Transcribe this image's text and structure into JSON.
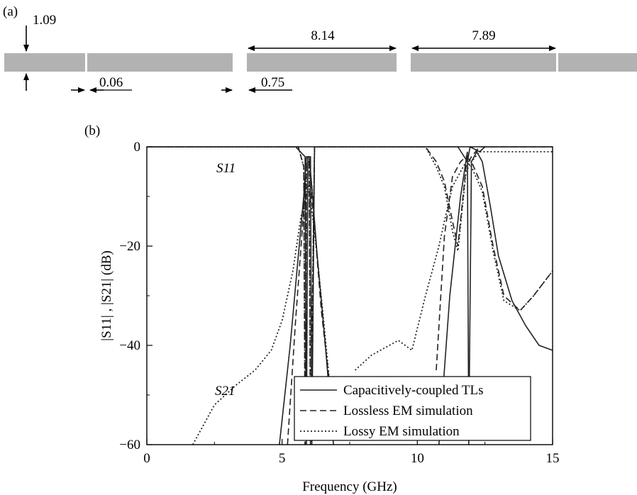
{
  "panel_labels": {
    "a": "(a)",
    "b": "(b)"
  },
  "layout_diagram": {
    "dimensions": [
      "1.09",
      "0.06",
      "8.14",
      "0.75",
      "7.89"
    ]
  },
  "chart_data": {
    "type": "line",
    "title": "",
    "xlabel": "Frequency (GHz)",
    "ylabel": "|S11| , |S21| (dB)",
    "xlim": [
      0,
      15
    ],
    "ylim": [
      -60,
      0
    ],
    "xticks": [
      "0",
      "5",
      "10",
      "15"
    ],
    "yticks": [
      "0",
      "−20",
      "−40",
      "−60"
    ],
    "grid": false,
    "legend_position": "bottom-right",
    "annotations": [
      "S11",
      "S21"
    ],
    "series": [
      {
        "name": "Capacitively-coupled TLs",
        "style": "solid",
        "curves": [
          {
            "label": "S21",
            "x": [
              4.9,
              5.3,
              5.6,
              5.8,
              5.9,
              6.0,
              6.1,
              6.3,
              6.6,
              6.9
            ],
            "y": [
              -60,
              -40,
              -22,
              -10,
              -2,
              -2,
              -8,
              -22,
              -40,
              -60
            ]
          },
          {
            "label": "S21",
            "x": [
              10.8,
              11.2,
              11.6,
              11.85,
              11.9,
              12.0,
              12.2,
              12.4,
              12.7,
              13.0,
              13.5,
              14.0,
              14.5,
              15.0
            ],
            "y": [
              -60,
              -30,
              -10,
              -1,
              -60,
              -3,
              -1,
              -3,
              -12,
              -22,
              -31,
              -36,
              -40,
              -41
            ]
          },
          {
            "label": "S11",
            "x": [
              0,
              5.5,
              5.85,
              5.9,
              5.95,
              6.05,
              6.1,
              6.2,
              11.5,
              11.85,
              11.95,
              12.3,
              12.5,
              15.0
            ],
            "y": [
              0,
              0,
              -2,
              -60,
              -2,
              -2,
              -60,
              0,
              0,
              -3,
              0,
              -1,
              0,
              0
            ]
          }
        ]
      },
      {
        "name": "Lossless EM simulation",
        "style": "dashed",
        "curves": [
          {
            "label": "S21",
            "x": [
              5.2,
              5.5,
              5.7,
              5.85,
              5.95,
              6.05,
              6.2,
              6.45,
              6.8
            ],
            "y": [
              -60,
              -35,
              -20,
              -9,
              -8,
              -8,
              -16,
              -33,
              -50
            ]
          },
          {
            "label": "S21",
            "x": [
              10.7,
              11.0,
              11.3,
              11.6,
              11.8,
              12.0,
              12.4,
              12.8,
              13.2,
              13.8,
              14.3,
              15.0
            ],
            "y": [
              -45,
              -18,
              -6,
              -3,
              -2,
              -3,
              -8,
              -20,
              -30,
              -33,
              -30,
              -25
            ]
          },
          {
            "label": "S11",
            "x": [
              0,
              5.6,
              5.8,
              5.85,
              5.9,
              6.0,
              6.05,
              6.2,
              10.3,
              10.7,
              11.0,
              11.3,
              11.5,
              11.8,
              12.0,
              12.3,
              15.0
            ],
            "y": [
              0,
              0,
              -4,
              -60,
              -3,
              -3,
              -60,
              0,
              0,
              -3,
              -7,
              -15,
              -20,
              -4,
              -2,
              0,
              0
            ]
          }
        ]
      },
      {
        "name": "Lossy EM simulation",
        "style": "dotted",
        "curves": [
          {
            "label": "S21",
            "x": [
              1.7,
              2.5,
              3.3,
              4.0,
              4.6,
              5.0,
              5.4,
              5.7,
              5.9,
              6.0,
              6.2,
              6.5,
              6.8
            ],
            "y": [
              -60,
              -52,
              -48,
              -45,
              -41,
              -35,
              -25,
              -14,
              -10,
              -9,
              -17,
              -33,
              -50
            ]
          },
          {
            "label": "S21",
            "x": [
              7.7,
              8.3,
              9.3,
              9.8,
              10.3,
              10.8,
              11.0,
              11.3,
              11.6,
              11.8,
              12.0,
              12.4,
              12.8,
              13.2,
              13.8,
              14.3,
              15.0
            ],
            "y": [
              -45,
              -42,
              -39,
              -41,
              -30,
              -20,
              -15,
              -8,
              -5,
              -3,
              -4,
              -9,
              -21,
              -31,
              -33,
              -30,
              -25
            ]
          },
          {
            "label": "S11",
            "x": [
              0,
              5.6,
              5.8,
              5.85,
              5.9,
              6.0,
              6.05,
              6.2,
              10.3,
              10.7,
              11.0,
              11.3,
              11.5,
              11.8,
              12.0,
              12.3,
              15.0
            ],
            "y": [
              0,
              0,
              -4,
              -60,
              -3,
              -3,
              -60,
              0,
              0,
              -4,
              -8,
              -17,
              -21,
              -5,
              -3,
              -1,
              -1
            ]
          }
        ]
      }
    ]
  }
}
